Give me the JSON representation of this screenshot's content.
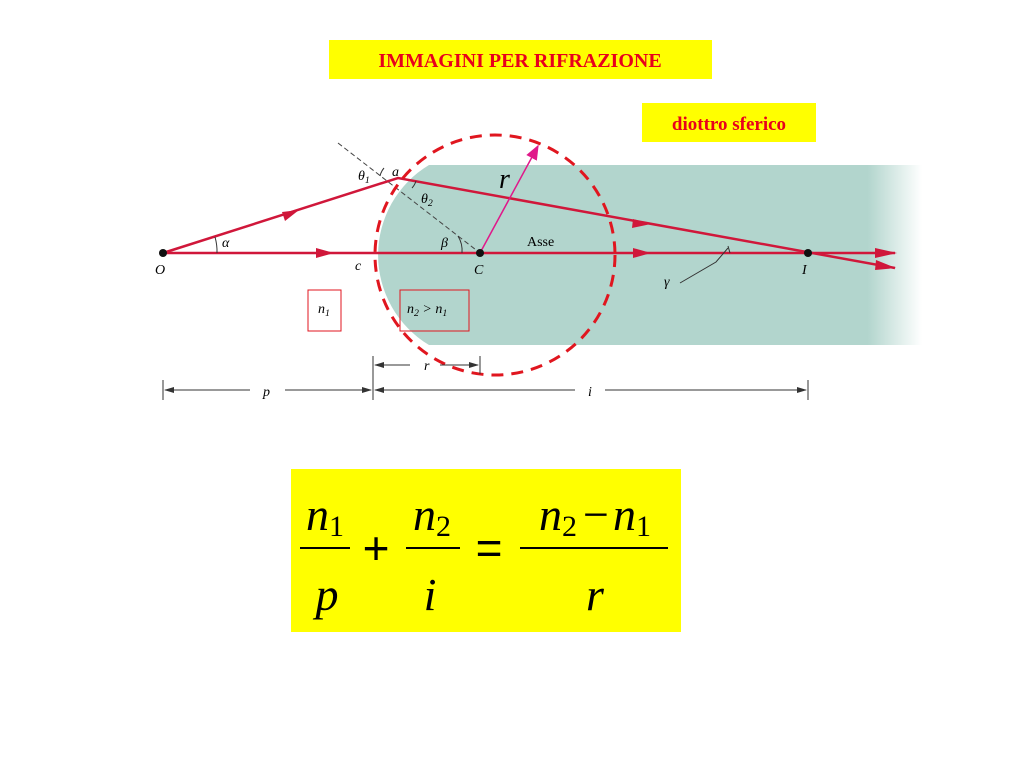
{
  "header": {
    "title": "IMMAGINI PER RIFRAZIONE",
    "subtitle": "diottro sferico"
  },
  "diagram": {
    "theta1": [
      "θ",
      "1"
    ],
    "a": "a",
    "theta2": [
      "θ",
      "2"
    ],
    "r": "r",
    "alpha": "α",
    "beta": "β",
    "axis": "Asse",
    "O": "O",
    "c": "c",
    "C": "C",
    "I": "I",
    "gamma": "γ",
    "n1": [
      "n",
      "1"
    ],
    "n2": [
      "n",
      "2",
      " > n",
      "1"
    ],
    "dim_r": "r",
    "dim_p": "p",
    "dim_i": "i"
  },
  "formula": {
    "term1_num": [
      "n",
      "1"
    ],
    "term1_den": "p",
    "plus": "+",
    "term2_num": [
      "n",
      "2"
    ],
    "term2_den": "i",
    "equals": "=",
    "rhs_num": [
      "n",
      "2",
      "−",
      "n",
      "1"
    ],
    "rhs_den": "r"
  }
}
